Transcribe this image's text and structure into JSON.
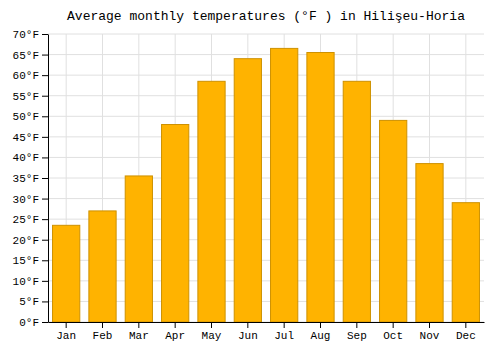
{
  "chart_data": {
    "type": "bar",
    "title": "Average monthly temperatures (°F ) in Hilişeu-Horia",
    "categories": [
      "Jan",
      "Feb",
      "Mar",
      "Apr",
      "May",
      "Jun",
      "Jul",
      "Aug",
      "Sep",
      "Oct",
      "Nov",
      "Dec"
    ],
    "values": [
      23.5,
      27.0,
      35.5,
      48.0,
      58.5,
      64.0,
      66.5,
      65.5,
      58.5,
      49.0,
      38.5,
      29.0
    ],
    "color": "#FFB300",
    "ylim": [
      0,
      70
    ],
    "yticks": [
      {
        "value": 0,
        "label": "0°F"
      },
      {
        "value": 5,
        "label": "5°F"
      },
      {
        "value": 10,
        "label": "10°F"
      },
      {
        "value": 15,
        "label": "15°F"
      },
      {
        "value": 20,
        "label": "20°F"
      },
      {
        "value": 25,
        "label": "25°F"
      },
      {
        "value": 30,
        "label": "30°F"
      },
      {
        "value": 35,
        "label": "35°F"
      },
      {
        "value": 40,
        "label": "40°F"
      },
      {
        "value": 45,
        "label": "45°F"
      },
      {
        "value": 50,
        "label": "50°F"
      },
      {
        "value": 55,
        "label": "55°F"
      },
      {
        "value": 60,
        "label": "60°F"
      },
      {
        "value": 65,
        "label": "65°F"
      },
      {
        "value": 70,
        "label": "70°F"
      }
    ],
    "grid": true
  }
}
